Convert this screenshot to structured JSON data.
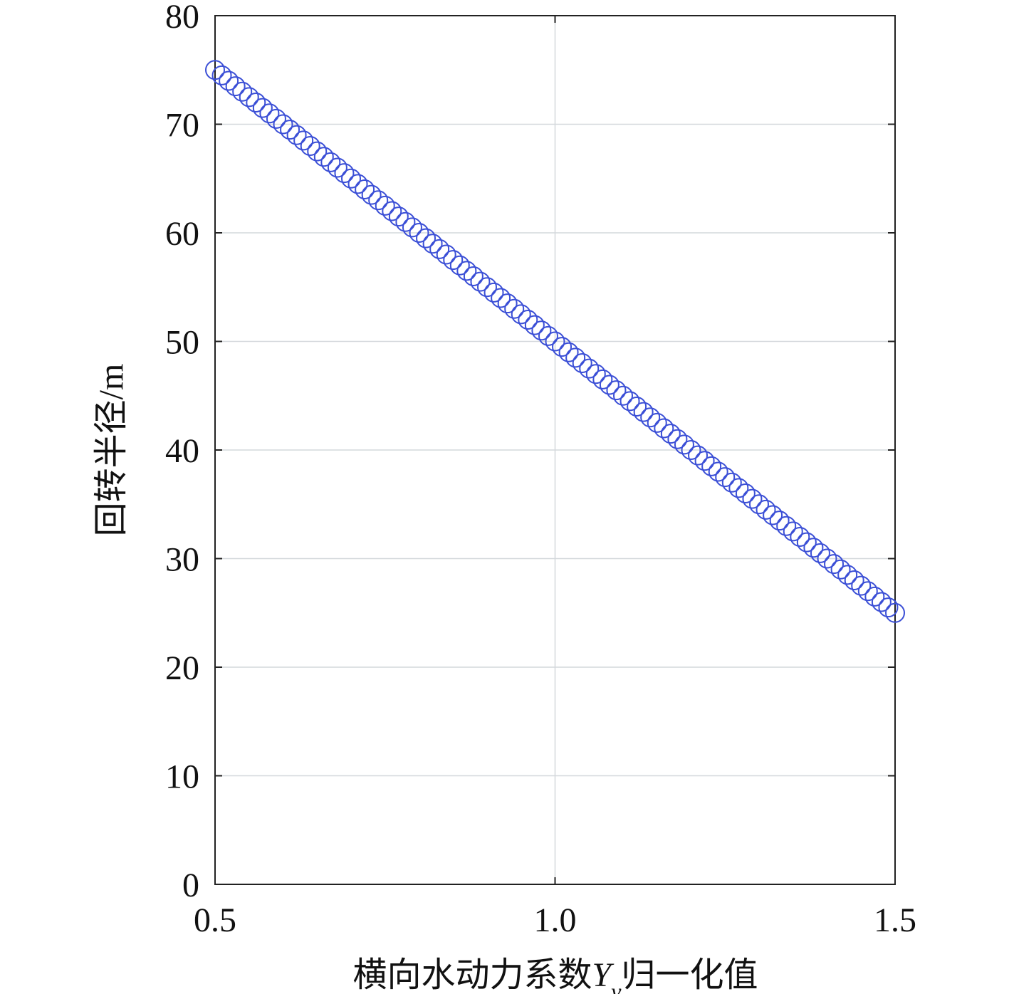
{
  "chart_data": {
    "type": "scatter",
    "xlabel": [
      "横向水动力系数",
      "Y",
      "v",
      "归一化值"
    ],
    "ylabel": "回转半径/m",
    "x": [
      0.5,
      0.51,
      0.52,
      0.53,
      0.54,
      0.55,
      0.56,
      0.57,
      0.58,
      0.59,
      0.6,
      0.61,
      0.62,
      0.63,
      0.64,
      0.65,
      0.66,
      0.67,
      0.68,
      0.69,
      0.7,
      0.71,
      0.72,
      0.73,
      0.74,
      0.75,
      0.76,
      0.77,
      0.78,
      0.79,
      0.8,
      0.81,
      0.82,
      0.83,
      0.84,
      0.85,
      0.86,
      0.87,
      0.88,
      0.89,
      0.9,
      0.91,
      0.92,
      0.93,
      0.94,
      0.95,
      0.96,
      0.97,
      0.98,
      0.99,
      1,
      1.01,
      1.02,
      1.03,
      1.04,
      1.05,
      1.06,
      1.07,
      1.08,
      1.09,
      1.1,
      1.11,
      1.12,
      1.13,
      1.14,
      1.15,
      1.16,
      1.17,
      1.18,
      1.19,
      1.2,
      1.21,
      1.22,
      1.23,
      1.24,
      1.25,
      1.26,
      1.27,
      1.28,
      1.29,
      1.3,
      1.31,
      1.32,
      1.33,
      1.34,
      1.35,
      1.36,
      1.37,
      1.38,
      1.39,
      1.4,
      1.41,
      1.42,
      1.43,
      1.44,
      1.45,
      1.46,
      1.47,
      1.48,
      1.49,
      1.5
    ],
    "values": [
      75,
      74.5,
      74,
      73.5,
      73,
      72.5,
      72,
      71.5,
      71,
      70.5,
      70,
      69.5,
      69,
      68.5,
      68,
      67.5,
      67,
      66.5,
      66,
      65.5,
      65,
      64.5,
      64,
      63.5,
      63,
      62.5,
      62,
      61.5,
      61,
      60.5,
      60,
      59.5,
      59,
      58.5,
      58,
      57.5,
      57,
      56.5,
      56,
      55.5,
      55,
      54.5,
      54,
      53.5,
      53,
      52.5,
      52,
      51.5,
      51,
      50.5,
      50,
      49.5,
      49,
      48.5,
      48,
      47.5,
      47,
      46.5,
      46,
      45.5,
      45,
      44.5,
      44,
      43.5,
      43,
      42.5,
      42,
      41.5,
      41,
      40.5,
      40,
      39.5,
      39,
      38.5,
      38,
      37.5,
      37,
      36.5,
      36,
      35.5,
      35,
      34.5,
      34,
      33.5,
      33,
      32.5,
      32,
      31.5,
      31,
      30.5,
      30,
      29.5,
      29,
      28.5,
      28,
      27.5,
      27,
      26.5,
      26,
      25.5,
      25
    ],
    "color": "#3b4fd6",
    "xlim": [
      0.5,
      1.5
    ],
    "xticks": [
      0.5,
      {
        "value": 1,
        "label": "1.0"
      },
      1.5
    ],
    "ylim": [
      0,
      80
    ],
    "yticks": [
      0,
      10,
      20,
      30,
      40,
      50,
      60,
      70,
      80
    ],
    "grid": true
  }
}
